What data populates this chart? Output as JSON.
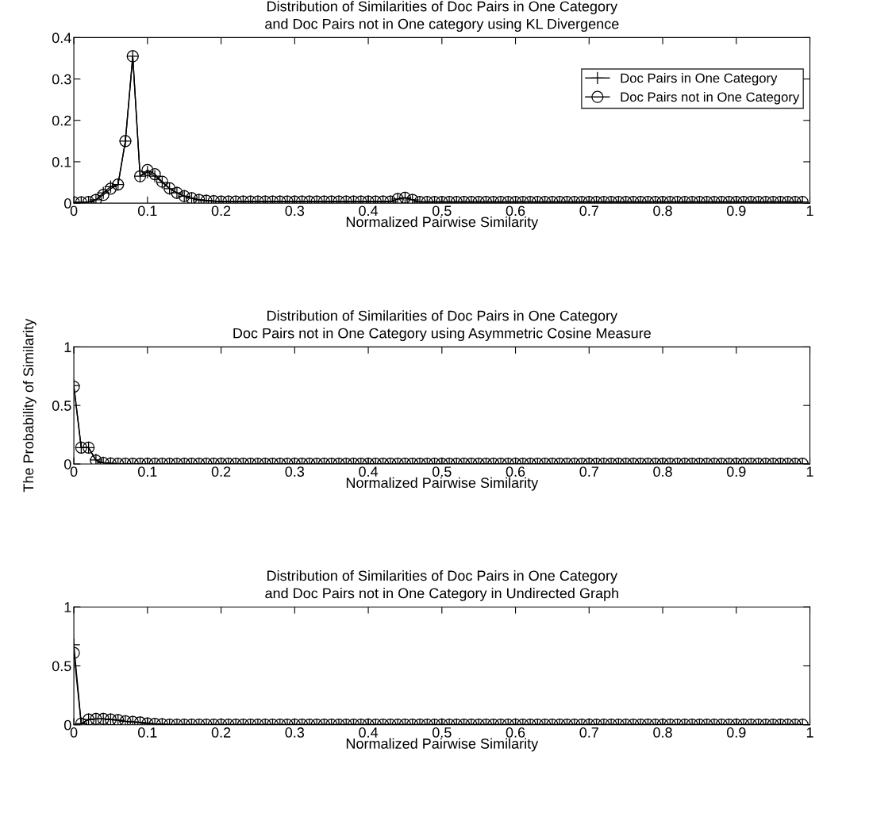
{
  "chart_data": [
    {
      "type": "line",
      "title": "Distribution of Similarities of Doc Pairs in One Category\nand Doc Pairs not in One category using KL Divergence",
      "xlabel": "Normalized Pairwise Similarity",
      "x": [
        0,
        0.01,
        0.02,
        0.03,
        0.04,
        0.05,
        0.06,
        0.07,
        0.08,
        0.09,
        0.1,
        0.11,
        0.12,
        0.13,
        0.14,
        0.15,
        0.16,
        0.17,
        0.18,
        0.19,
        0.2,
        0.21,
        0.22,
        0.23,
        0.24,
        0.25,
        0.26,
        0.27,
        0.28,
        0.29,
        0.3,
        0.31,
        0.32,
        0.33,
        0.34,
        0.35,
        0.36,
        0.37,
        0.38,
        0.39,
        0.4,
        0.41,
        0.42,
        0.43,
        0.44,
        0.45,
        0.46,
        0.47,
        0.48,
        0.49,
        0.5,
        0.51,
        0.52,
        0.53,
        0.54,
        0.55,
        0.56,
        0.57,
        0.58,
        0.59,
        0.6,
        0.61,
        0.62,
        0.63,
        0.64,
        0.65,
        0.66,
        0.67,
        0.68,
        0.69,
        0.7,
        0.71,
        0.72,
        0.73,
        0.74,
        0.75,
        0.76,
        0.77,
        0.78,
        0.79,
        0.8,
        0.81,
        0.82,
        0.83,
        0.84,
        0.85,
        0.86,
        0.87,
        0.88,
        0.89,
        0.9,
        0.91,
        0.92,
        0.93,
        0.94,
        0.95,
        0.96,
        0.97,
        0.98,
        0.99
      ],
      "series": [
        {
          "name": "Doc Pairs in One Category",
          "color": "#000000",
          "marker": "cross",
          "values": [
            0.002,
            0.002,
            0.003,
            0.008,
            0.025,
            0.04,
            0.045,
            0.15,
            0.355,
            0.065,
            0.075,
            0.065,
            0.05,
            0.035,
            0.025,
            0.017,
            0.012,
            0.008,
            0.006,
            0.005,
            0.004,
            0.004,
            0.004,
            0.004,
            0.004,
            0.004,
            0.004,
            0.004,
            0.004,
            0.004,
            0.004,
            0.004,
            0.004,
            0.004,
            0.004,
            0.004,
            0.004,
            0.004,
            0.004,
            0.004,
            0.004,
            0.004,
            0.004,
            0.004,
            0.01,
            0.013,
            0.008,
            0.003,
            0.003,
            0.003,
            0.003,
            0.003,
            0.003,
            0.003,
            0.003,
            0.003,
            0.003,
            0.003,
            0.003,
            0.003,
            0.003,
            0.003,
            0.003,
            0.003,
            0.003,
            0.003,
            0.003,
            0.003,
            0.003,
            0.003,
            0.003,
            0.003,
            0.003,
            0.003,
            0.003,
            0.003,
            0.003,
            0.003,
            0.003,
            0.003,
            0.003,
            0.003,
            0.003,
            0.003,
            0.003,
            0.003,
            0.003,
            0.003,
            0.003,
            0.003,
            0.003,
            0.003,
            0.003,
            0.003,
            0.003,
            0.003,
            0.003,
            0.003,
            0.003,
            0.003
          ]
        },
        {
          "name": "Doc Pairs not in One Category",
          "color": "#000000",
          "marker": "circle",
          "values": [
            0.002,
            0.002,
            0.003,
            0.008,
            0.02,
            0.035,
            0.045,
            0.15,
            0.355,
            0.065,
            0.08,
            0.07,
            0.052,
            0.036,
            0.025,
            0.017,
            0.012,
            0.008,
            0.006,
            0.005,
            0.004,
            0.004,
            0.004,
            0.004,
            0.004,
            0.004,
            0.004,
            0.004,
            0.004,
            0.004,
            0.004,
            0.004,
            0.004,
            0.004,
            0.004,
            0.004,
            0.004,
            0.004,
            0.004,
            0.004,
            0.004,
            0.004,
            0.004,
            0.004,
            0.01,
            0.013,
            0.008,
            0.003,
            0.003,
            0.003,
            0.003,
            0.003,
            0.003,
            0.003,
            0.003,
            0.003,
            0.003,
            0.003,
            0.003,
            0.003,
            0.003,
            0.003,
            0.003,
            0.003,
            0.003,
            0.003,
            0.003,
            0.003,
            0.003,
            0.003,
            0.003,
            0.003,
            0.003,
            0.003,
            0.003,
            0.003,
            0.003,
            0.003,
            0.003,
            0.003,
            0.003,
            0.003,
            0.003,
            0.003,
            0.003,
            0.003,
            0.003,
            0.003,
            0.003,
            0.003,
            0.003,
            0.003,
            0.003,
            0.003,
            0.003,
            0.003,
            0.003,
            0.003,
            0.003,
            0.003
          ]
        }
      ],
      "xlim": [
        0,
        1
      ],
      "xticks": [
        0,
        0.1,
        0.2,
        0.3,
        0.4,
        0.5,
        0.6,
        0.7,
        0.8,
        0.9,
        1
      ],
      "ylim": [
        0,
        0.4
      ],
      "yticks": [
        0,
        0.1,
        0.2,
        0.3,
        0.4
      ],
      "grid": false,
      "legend": "top right"
    },
    {
      "type": "line",
      "title": "Distribution of Similarities of Doc Pairs in One Category\nDoc Pairs not in One Category using Asymmetric Cosine Measure",
      "xlabel": "Normalized Pairwise Similarity",
      "ylabel": "The Probability of Similarity",
      "x": [
        0,
        0.01,
        0.02,
        0.03,
        0.04,
        0.05,
        0.06,
        0.07,
        0.08,
        0.09,
        0.1,
        0.11,
        0.12,
        0.13,
        0.14,
        0.15,
        0.16,
        0.17,
        0.18,
        0.19,
        0.2,
        0.21,
        0.22,
        0.23,
        0.24,
        0.25,
        0.26,
        0.27,
        0.28,
        0.29,
        0.3,
        0.31,
        0.32,
        0.33,
        0.34,
        0.35,
        0.36,
        0.37,
        0.38,
        0.39,
        0.4,
        0.41,
        0.42,
        0.43,
        0.44,
        0.45,
        0.46,
        0.47,
        0.48,
        0.49,
        0.5,
        0.51,
        0.52,
        0.53,
        0.54,
        0.55,
        0.56,
        0.57,
        0.58,
        0.59,
        0.6,
        0.61,
        0.62,
        0.63,
        0.64,
        0.65,
        0.66,
        0.67,
        0.68,
        0.69,
        0.7,
        0.71,
        0.72,
        0.73,
        0.74,
        0.75,
        0.76,
        0.77,
        0.78,
        0.79,
        0.8,
        0.81,
        0.82,
        0.83,
        0.84,
        0.85,
        0.86,
        0.87,
        0.88,
        0.89,
        0.9,
        0.91,
        0.92,
        0.93,
        0.94,
        0.95,
        0.96,
        0.97,
        0.98,
        0.99
      ],
      "series": [
        {
          "color": "#000000",
          "marker": "cross",
          "values": [
            0.67,
            0.14,
            0.14,
            0.035,
            0.01,
            0.005,
            0.002,
            0.002,
            0.002,
            0.002,
            0.002,
            0.002,
            0.002,
            0.002,
            0.002,
            0.002,
            0.002,
            0.002,
            0.002,
            0.002,
            0.002,
            0.002,
            0.002,
            0.002,
            0.002,
            0.002,
            0.002,
            0.002,
            0.002,
            0.002,
            0.002,
            0.002,
            0.002,
            0.002,
            0.002,
            0.002,
            0.002,
            0.002,
            0.002,
            0.002,
            0.002,
            0.002,
            0.002,
            0.002,
            0.002,
            0.002,
            0.002,
            0.002,
            0.002,
            0.002,
            0.002,
            0.002,
            0.002,
            0.002,
            0.002,
            0.002,
            0.002,
            0.002,
            0.002,
            0.002,
            0.002,
            0.002,
            0.002,
            0.002,
            0.002,
            0.002,
            0.002,
            0.002,
            0.002,
            0.002,
            0.002,
            0.002,
            0.002,
            0.002,
            0.002,
            0.002,
            0.002,
            0.002,
            0.002,
            0.002,
            0.002,
            0.002,
            0.002,
            0.002,
            0.002,
            0.002,
            0.002,
            0.002,
            0.002,
            0.002,
            0.002,
            0.002,
            0.002,
            0.002,
            0.002,
            0.002,
            0.002,
            0.002,
            0.002,
            0.002
          ]
        },
        {
          "color": "#000000",
          "marker": "circle",
          "values": [
            0.66,
            0.14,
            0.14,
            0.03,
            0.01,
            0.005,
            0.002,
            0.002,
            0.002,
            0.002,
            0.002,
            0.002,
            0.002,
            0.002,
            0.002,
            0.002,
            0.002,
            0.002,
            0.002,
            0.002,
            0.002,
            0.002,
            0.002,
            0.002,
            0.002,
            0.002,
            0.002,
            0.002,
            0.002,
            0.002,
            0.002,
            0.002,
            0.002,
            0.002,
            0.002,
            0.002,
            0.002,
            0.002,
            0.002,
            0.002,
            0.002,
            0.002,
            0.002,
            0.002,
            0.002,
            0.002,
            0.002,
            0.002,
            0.002,
            0.002,
            0.002,
            0.002,
            0.002,
            0.002,
            0.002,
            0.002,
            0.002,
            0.002,
            0.002,
            0.002,
            0.002,
            0.002,
            0.002,
            0.002,
            0.002,
            0.002,
            0.002,
            0.002,
            0.002,
            0.002,
            0.002,
            0.002,
            0.002,
            0.002,
            0.002,
            0.002,
            0.002,
            0.002,
            0.002,
            0.002,
            0.002,
            0.002,
            0.002,
            0.002,
            0.002,
            0.002,
            0.002,
            0.002,
            0.002,
            0.002,
            0.002,
            0.002,
            0.002,
            0.002,
            0.002,
            0.002,
            0.002,
            0.002,
            0.002,
            0.002
          ]
        }
      ],
      "xlim": [
        0,
        1
      ],
      "xticks": [
        0,
        0.1,
        0.2,
        0.3,
        0.4,
        0.5,
        0.6,
        0.7,
        0.8,
        0.9,
        1
      ],
      "ylim": [
        0,
        1
      ],
      "yticks": [
        0,
        0.5,
        1
      ],
      "grid": false
    },
    {
      "type": "line",
      "title": "Distribution of Similarities of Doc Pairs in One Category\nand Doc Pairs not in One Category in Undirected Graph",
      "xlabel": "Normalized Pairwise Similarity",
      "x": [
        0,
        0.01,
        0.02,
        0.03,
        0.04,
        0.05,
        0.06,
        0.07,
        0.08,
        0.09,
        0.1,
        0.11,
        0.12,
        0.13,
        0.14,
        0.15,
        0.16,
        0.17,
        0.18,
        0.19,
        0.2,
        0.21,
        0.22,
        0.23,
        0.24,
        0.25,
        0.26,
        0.27,
        0.28,
        0.29,
        0.3,
        0.31,
        0.32,
        0.33,
        0.34,
        0.35,
        0.36,
        0.37,
        0.38,
        0.39,
        0.4,
        0.41,
        0.42,
        0.43,
        0.44,
        0.45,
        0.46,
        0.47,
        0.48,
        0.49,
        0.5,
        0.51,
        0.52,
        0.53,
        0.54,
        0.55,
        0.56,
        0.57,
        0.58,
        0.59,
        0.6,
        0.61,
        0.62,
        0.63,
        0.64,
        0.65,
        0.66,
        0.67,
        0.68,
        0.69,
        0.7,
        0.71,
        0.72,
        0.73,
        0.74,
        0.75,
        0.76,
        0.77,
        0.78,
        0.79,
        0.8,
        0.81,
        0.82,
        0.83,
        0.84,
        0.85,
        0.86,
        0.87,
        0.88,
        0.89,
        0.9,
        0.91,
        0.92,
        0.93,
        0.94,
        0.95,
        0.96,
        0.97,
        0.98,
        0.99
      ],
      "series": [
        {
          "color": "#000000",
          "marker": "cross",
          "values": [
            0.68,
            0.01,
            0.045,
            0.05,
            0.05,
            0.045,
            0.04,
            0.03,
            0.025,
            0.02,
            0.012,
            0.008,
            0.005,
            0.002,
            0.002,
            0.002,
            0.002,
            0.002,
            0.002,
            0.002,
            0.002,
            0.002,
            0.002,
            0.002,
            0.002,
            0.002,
            0.002,
            0.002,
            0.002,
            0.002,
            0.002,
            0.002,
            0.002,
            0.002,
            0.002,
            0.002,
            0.002,
            0.002,
            0.002,
            0.002,
            0.002,
            0.002,
            0.002,
            0.002,
            0.002,
            0.002,
            0.002,
            0.002,
            0.002,
            0.002,
            0.002,
            0.002,
            0.002,
            0.002,
            0.002,
            0.002,
            0.002,
            0.002,
            0.002,
            0.002,
            0.002,
            0.002,
            0.002,
            0.002,
            0.002,
            0.002,
            0.002,
            0.002,
            0.002,
            0.002,
            0.002,
            0.002,
            0.002,
            0.002,
            0.002,
            0.002,
            0.002,
            0.002,
            0.002,
            0.002,
            0.002,
            0.002,
            0.002,
            0.002,
            0.002,
            0.002,
            0.002,
            0.002,
            0.002,
            0.002,
            0.002,
            0.002,
            0.002,
            0.002,
            0.002,
            0.002,
            0.002,
            0.002,
            0.002,
            0.002
          ]
        },
        {
          "color": "#000000",
          "marker": "circle",
          "values": [
            0.61,
            0.01,
            0.045,
            0.05,
            0.05,
            0.045,
            0.04,
            0.03,
            0.025,
            0.02,
            0.012,
            0.008,
            0.005,
            0.002,
            0.002,
            0.002,
            0.002,
            0.002,
            0.002,
            0.002,
            0.002,
            0.002,
            0.002,
            0.002,
            0.002,
            0.002,
            0.002,
            0.002,
            0.002,
            0.002,
            0.002,
            0.002,
            0.002,
            0.002,
            0.002,
            0.002,
            0.002,
            0.002,
            0.002,
            0.002,
            0.002,
            0.002,
            0.002,
            0.002,
            0.002,
            0.002,
            0.002,
            0.002,
            0.002,
            0.002,
            0.002,
            0.002,
            0.002,
            0.002,
            0.002,
            0.002,
            0.002,
            0.002,
            0.002,
            0.002,
            0.002,
            0.002,
            0.002,
            0.002,
            0.002,
            0.002,
            0.002,
            0.002,
            0.002,
            0.002,
            0.002,
            0.002,
            0.002,
            0.002,
            0.002,
            0.002,
            0.002,
            0.002,
            0.002,
            0.002,
            0.002,
            0.002,
            0.002,
            0.002,
            0.002,
            0.002,
            0.002,
            0.002,
            0.002,
            0.002,
            0.002,
            0.002,
            0.002,
            0.002,
            0.002,
            0.002,
            0.002,
            0.002,
            0.002,
            0.002
          ]
        }
      ],
      "xlim": [
        0,
        1
      ],
      "xticks": [
        0,
        0.1,
        0.2,
        0.3,
        0.4,
        0.5,
        0.6,
        0.7,
        0.8,
        0.9,
        1
      ],
      "ylim": [
        0,
        1
      ],
      "yticks": [
        0,
        0.5,
        1
      ],
      "grid": false
    }
  ]
}
